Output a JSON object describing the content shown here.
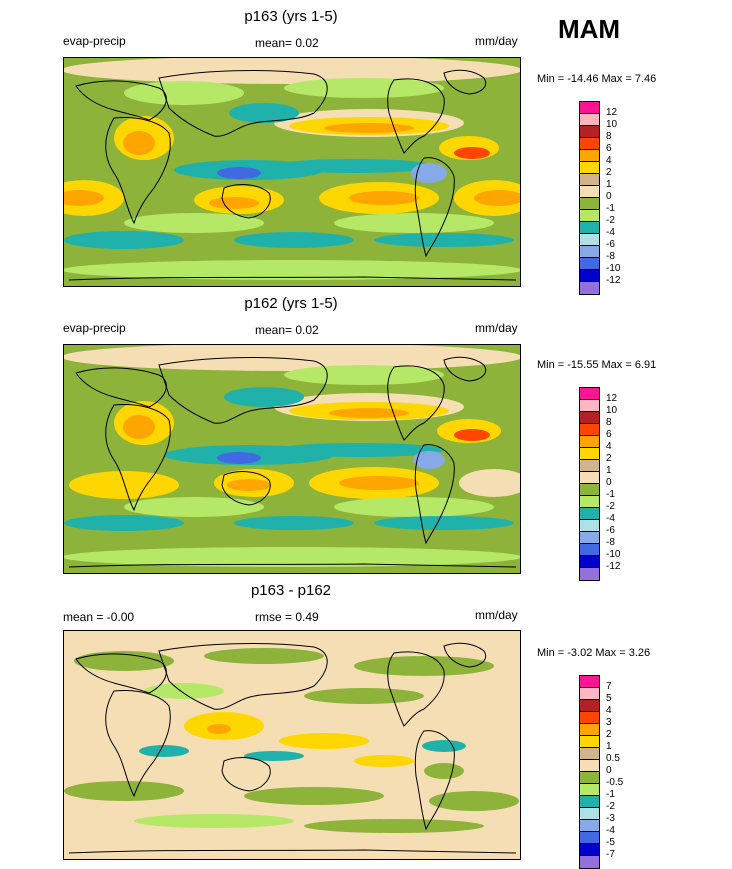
{
  "season": "MAM",
  "panels": [
    {
      "title": "p163 (yrs 1-5)",
      "left_label": "evap-precip",
      "center_label": "mean=  0.02",
      "units": "mm/day",
      "minmax": "Min = -14.46 Max =   7.46",
      "levels": [
        "12",
        "10",
        "8",
        "6",
        "4",
        "2",
        "1",
        "0",
        "-1",
        "-2",
        "-4",
        "-6",
        "-8",
        "-10",
        "-12"
      ],
      "colors": [
        "#ff1493",
        "#ffb6c1",
        "#b22222",
        "#ff4500",
        "#ffa500",
        "#ffd700",
        "#d2b48c",
        "#f5deb3",
        "#8db33a",
        "#b6e868",
        "#20b2aa",
        "#b0e0e6",
        "#87a9e8",
        "#4169e1",
        "#0000cd",
        "#9370db"
      ]
    },
    {
      "title": "p162 (yrs 1-5)",
      "left_label": "evap-precip",
      "center_label": "mean=  0.02",
      "units": "mm/day",
      "minmax": "Min = -15.55 Max =   6.91",
      "levels": [
        "12",
        "10",
        "8",
        "6",
        "4",
        "2",
        "1",
        "0",
        "-1",
        "-2",
        "-4",
        "-6",
        "-8",
        "-10",
        "-12"
      ],
      "colors": [
        "#ff1493",
        "#ffb6c1",
        "#b22222",
        "#ff4500",
        "#ffa500",
        "#ffd700",
        "#d2b48c",
        "#f5deb3",
        "#8db33a",
        "#b6e868",
        "#20b2aa",
        "#b0e0e6",
        "#87a9e8",
        "#4169e1",
        "#0000cd",
        "#9370db"
      ]
    },
    {
      "title": "p163 - p162",
      "left_label": "mean =  -0.00",
      "center_label": "rmse =  0.49",
      "units": "mm/day",
      "minmax": "Min =  -3.02 Max =   3.26",
      "levels": [
        "7",
        "5",
        "4",
        "3",
        "2",
        "1",
        "0.5",
        "0",
        "-0.5",
        "-1",
        "-2",
        "-3",
        "-4",
        "-5",
        "-7"
      ],
      "colors": [
        "#ff1493",
        "#ffb6c1",
        "#b22222",
        "#ff4500",
        "#ffa500",
        "#ffd700",
        "#d2b48c",
        "#f5deb3",
        "#8db33a",
        "#b6e868",
        "#20b2aa",
        "#b0e0e6",
        "#87a9e8",
        "#4169e1",
        "#0000cd",
        "#9370db"
      ]
    }
  ]
}
